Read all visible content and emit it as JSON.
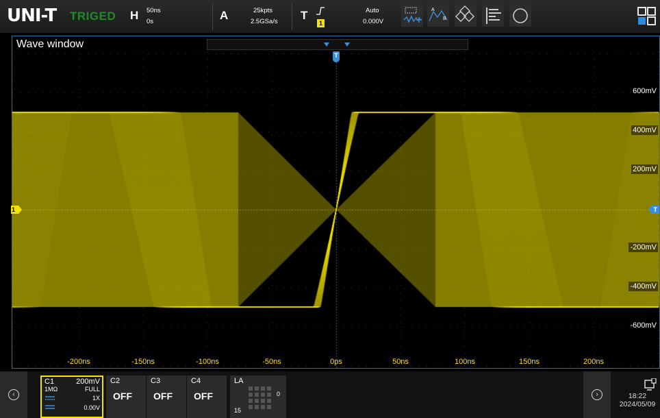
{
  "topbar": {
    "logo": "UNI-T",
    "trigger_status": "TRIGED",
    "horizontal": {
      "letter": "H",
      "timebase": "50ns",
      "offset": "0s"
    },
    "acquire": {
      "letter": "A",
      "memory_depth": "25kpts",
      "sample_rate": "2.5GSa/s"
    },
    "trigger": {
      "letter": "T",
      "source": "1",
      "mode": "Auto",
      "level": "0.000V",
      "edge": "rising-edge-icon"
    },
    "tools": [
      "measure-icon",
      "cursor-icon",
      "math-icon",
      "display-icon",
      "utility-icon",
      "app-menu-icon"
    ]
  },
  "wave_window": {
    "title": "Wave window",
    "y_labels": [
      "600mV",
      "400mV",
      "200mV",
      "-200mV",
      "-400mV",
      "-600mV"
    ],
    "x_labels": [
      "-200ns",
      "-150ns",
      "-100ns",
      "-50ns",
      "0ps",
      "50ns",
      "100ns",
      "150ns",
      "200ns"
    ],
    "channel_marker": "1",
    "trigger_marker": "T"
  },
  "channels": [
    {
      "name": "C1",
      "scale": "200mV",
      "impedance": "1MΩ",
      "bandwidth": "FULL",
      "probe": "1X",
      "offset": "0.00V",
      "color": "#f3e300",
      "active": true
    },
    {
      "name": "C2",
      "state": "OFF"
    },
    {
      "name": "C3",
      "state": "OFF"
    },
    {
      "name": "C4",
      "state": "OFF"
    }
  ],
  "logic_analyzer": {
    "name": "LA",
    "top": "0",
    "bottom": "15"
  },
  "status": {
    "time": "18:22",
    "date": "2024/05/09"
  },
  "colors": {
    "trace": "#f3e300",
    "frame": "#2f6fb2",
    "trigger_marker": "#3c8fd6",
    "status_green": "#1f8a2a"
  }
}
